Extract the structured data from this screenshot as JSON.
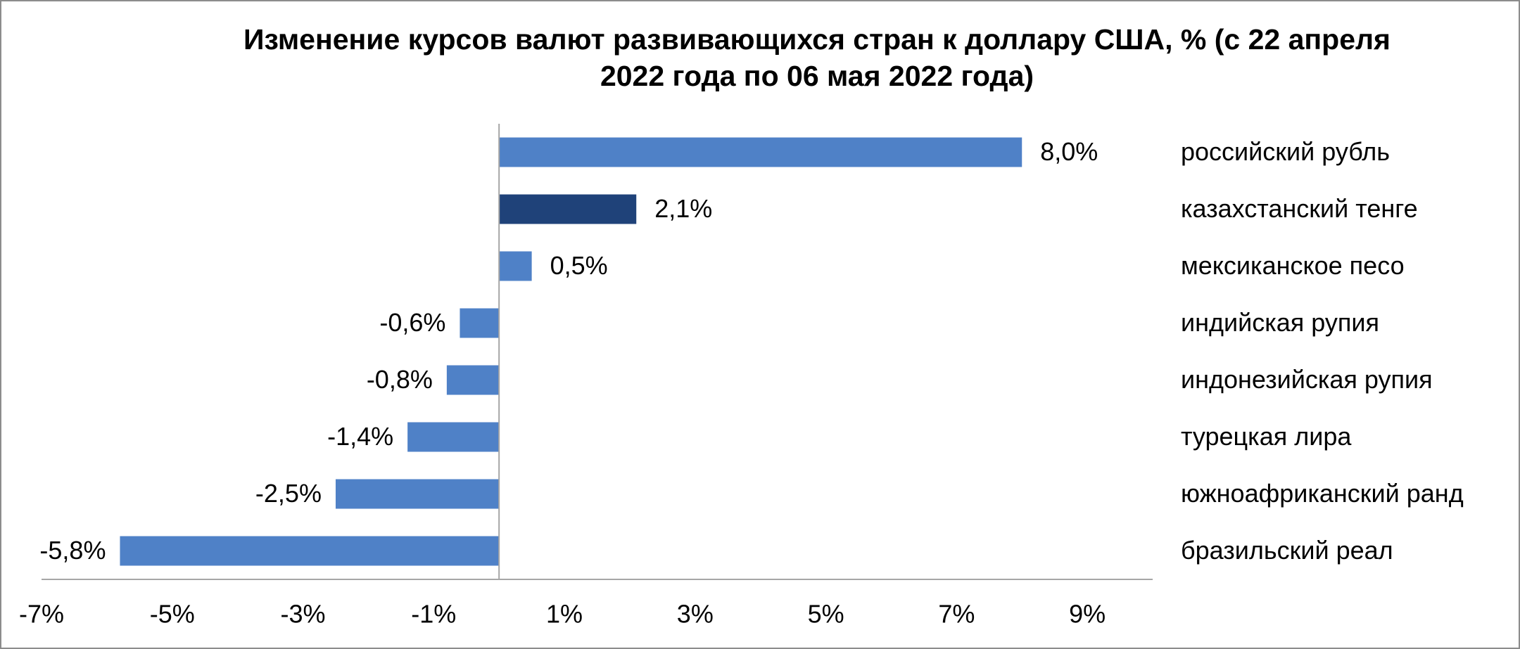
{
  "chart_data": {
    "type": "bar",
    "orientation": "horizontal",
    "title": "Изменение курсов валют развивающихся стран к доллару США, % (с 22 апреля 2022 года по 06 мая 2022 года)",
    "categories": [
      "российский рубль",
      "казахстанский тенге",
      "мексиканское песо",
      "индийская рупия",
      "индонезийская рупия",
      "турецкая лира",
      "южноафриканский ранд",
      "бразильский реал"
    ],
    "values": [
      8.0,
      2.1,
      0.5,
      -0.6,
      -0.8,
      -1.4,
      -2.5,
      -5.8
    ],
    "value_labels": [
      "8,0%",
      "2,1%",
      "0,5%",
      "-0,6%",
      "-0,8%",
      "-1,4%",
      "-2,5%",
      "-5,8%"
    ],
    "colors": [
      "#4f81c7",
      "#1f4279",
      "#4f81c7",
      "#4f81c7",
      "#4f81c7",
      "#4f81c7",
      "#4f81c7",
      "#4f81c7"
    ],
    "xlim": [
      -7,
      10
    ],
    "xticks": [
      {
        "value": -7,
        "label": "-7%"
      },
      {
        "value": -5,
        "label": "-5%"
      },
      {
        "value": -3,
        "label": "-3%"
      },
      {
        "value": -1,
        "label": "-1%"
      },
      {
        "value": 1,
        "label": "1%"
      },
      {
        "value": 3,
        "label": "3%"
      },
      {
        "value": 5,
        "label": "5%"
      },
      {
        "value": 7,
        "label": "7%"
      },
      {
        "value": 9,
        "label": "9%"
      }
    ],
    "grid": false
  }
}
